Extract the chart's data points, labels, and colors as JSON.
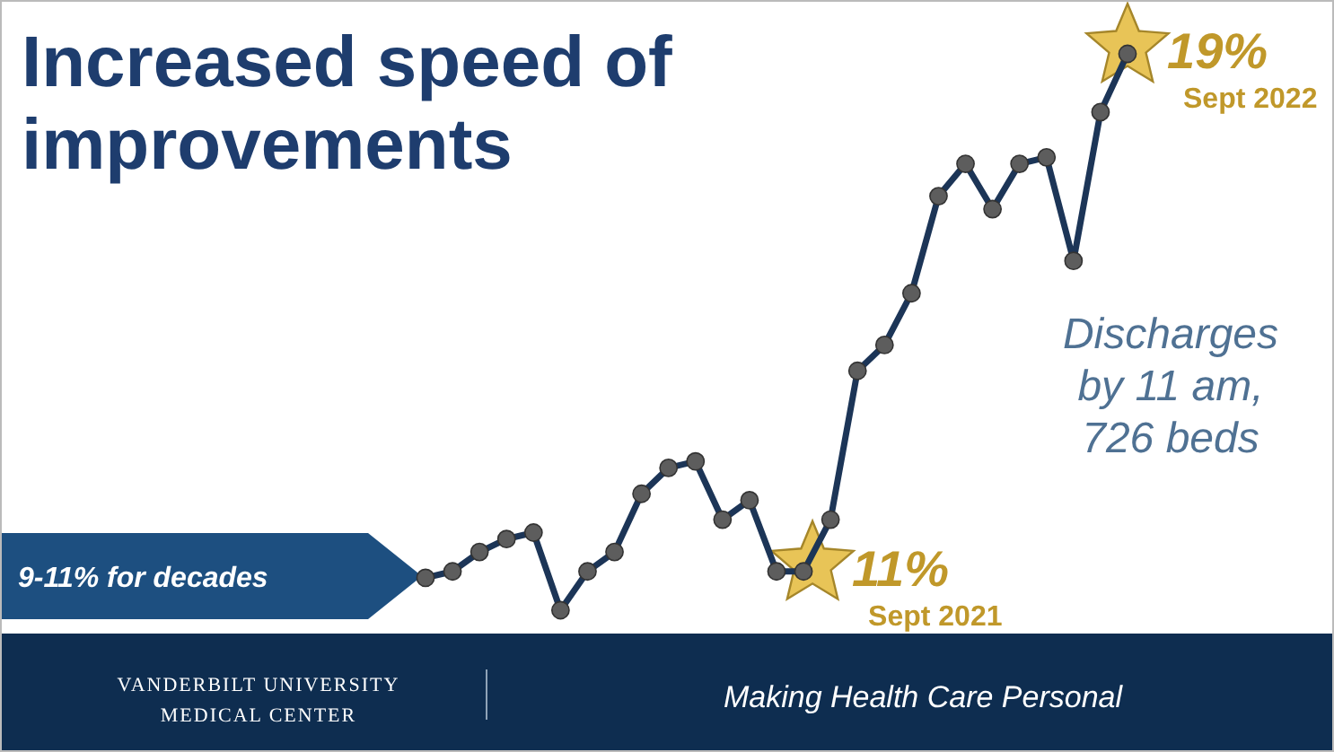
{
  "chart_data": {
    "type": "line",
    "title": "Increased speed of improvements",
    "categories": [
      null,
      null,
      null,
      null,
      null,
      null,
      null,
      null,
      null,
      null,
      null,
      null,
      null,
      null,
      null,
      null,
      null,
      null,
      null,
      null,
      null,
      null,
      null,
      null,
      null,
      null,
      null
    ],
    "series": [
      {
        "color": "#1c3557",
        "values": [
          10.9,
          11.0,
          11.3,
          11.5,
          11.6,
          10.4,
          11.0,
          11.3,
          12.2,
          12.6,
          12.7,
          11.8,
          12.1,
          11.0,
          11.0,
          11.8,
          14.1,
          14.5,
          15.3,
          16.8,
          17.3,
          16.6,
          17.3,
          17.4,
          15.8,
          18.1,
          19.0
        ],
        "value_labels": [
          null,
          null,
          null,
          null,
          null,
          null,
          null,
          null,
          null,
          null,
          null,
          null,
          null,
          null,
          "11%",
          null,
          null,
          null,
          null,
          null,
          null,
          null,
          null,
          null,
          null,
          null,
          "19%"
        ]
      }
    ],
    "marker": "circle",
    "annotations": [
      "Sept 2021",
      "Sept 2022",
      "Discharges by 11 am, 726 beds",
      "9-11% for decades",
      "VANDERBILT UNIVERSITY MEDICAL CENTER",
      "Making Health Care Personal"
    ]
  }
}
